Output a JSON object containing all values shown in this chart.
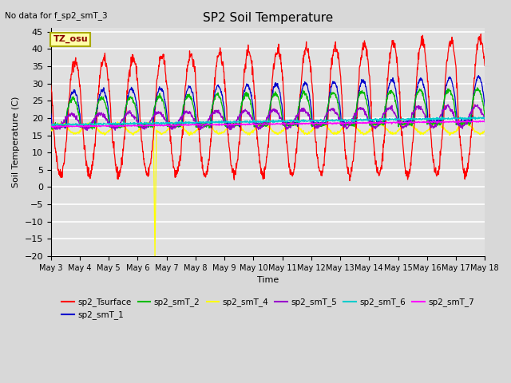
{
  "title": "SP2 Soil Temperature",
  "ylabel": "Soil Temperature (C)",
  "xlabel": "Time",
  "no_data_label": "No data for f_sp2_smT_3",
  "tz_label": "TZ_osu",
  "ylim": [
    -20,
    46
  ],
  "yticks": [
    -20,
    -15,
    -10,
    -5,
    0,
    5,
    10,
    15,
    20,
    25,
    30,
    35,
    40,
    45
  ],
  "num_days": 15,
  "points_per_day": 96,
  "background_color": "#d8d8d8",
  "plot_bg_color": "#e0e0e0",
  "grid_color": "#ffffff",
  "legend": [
    {
      "label": "sp2_Tsurface",
      "color": "#ff0000"
    },
    {
      "label": "sp2_smT_1",
      "color": "#0000cc"
    },
    {
      "label": "sp2_smT_2",
      "color": "#00bb00"
    },
    {
      "label": "sp2_smT_4",
      "color": "#ffff00"
    },
    {
      "label": "sp2_smT_5",
      "color": "#9900cc"
    },
    {
      "label": "sp2_smT_6",
      "color": "#00cccc"
    },
    {
      "label": "sp2_smT_7",
      "color": "#ff00ff"
    }
  ]
}
